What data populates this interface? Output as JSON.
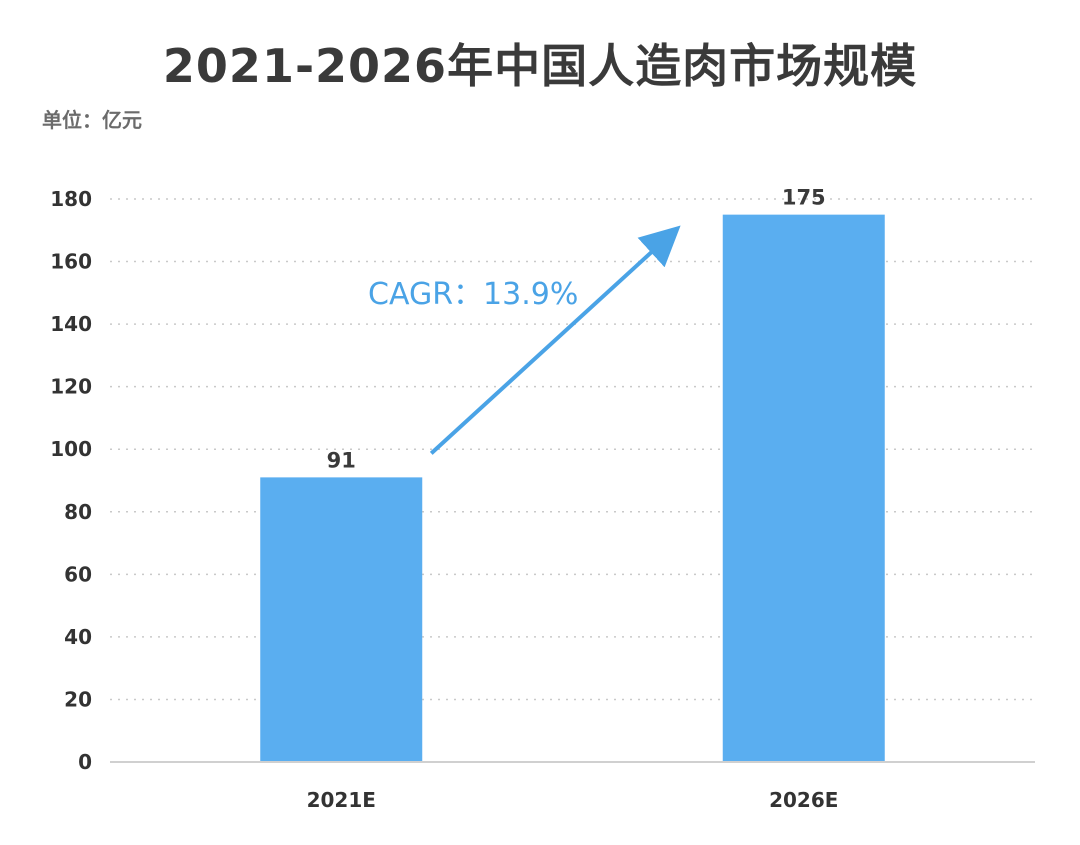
{
  "chart_data": {
    "type": "bar",
    "title": "2021-2026年中国人造肉市场规模",
    "unit_label": "单位：亿元",
    "categories": [
      "2021E",
      "2026E"
    ],
    "values": [
      91,
      175
    ],
    "ylim": [
      0,
      180
    ],
    "yticks": [
      0,
      20,
      40,
      60,
      80,
      100,
      120,
      140,
      160,
      180
    ],
    "grid": true,
    "bar_color": "#5aaef0",
    "annotation": {
      "text": "CAGR：13.9%",
      "color": "#4aa3e6",
      "arrow": "from 2021E bar toward 2026E bar"
    }
  }
}
